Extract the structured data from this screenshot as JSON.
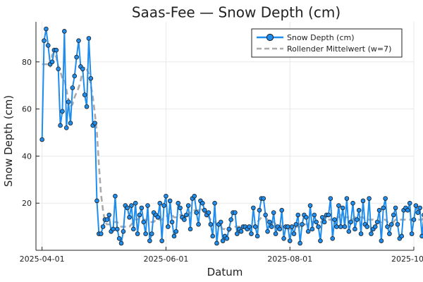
{
  "chart_data": {
    "type": "line",
    "title": "Saas-Fee — Snow Depth (cm)",
    "xlabel": "Datum",
    "ylabel": "Snow Depth (cm)",
    "x_type": "date",
    "x_start": "2025-04-01",
    "x_end": "2025-09-30",
    "xlim": [
      "2025-03-29",
      "2025-10-01"
    ],
    "ylim": [
      0,
      97
    ],
    "x_ticks": [
      "2025-04-01",
      "2025-06-01",
      "2025-08-01",
      "2025-10-01"
    ],
    "y_ticks": [
      20,
      40,
      60,
      80
    ],
    "grid": true,
    "legend_position": "top-right",
    "colors": {
      "series": "#1f8ded",
      "marker_edge": "#1a1a1a",
      "rolling": "#aaaaaa",
      "grid": "#e8e8e8"
    },
    "series": [
      {
        "name": "Snow Depth (cm)",
        "style": "line+markers",
        "values": [
          47,
          89,
          94,
          87,
          79,
          80,
          85,
          85,
          77,
          53,
          59,
          93,
          52,
          63,
          54,
          69,
          74,
          82,
          89,
          78,
          77,
          66,
          61,
          90,
          73,
          53,
          54,
          21,
          7,
          7,
          10,
          13,
          13,
          15,
          8,
          9,
          23,
          9,
          5,
          3,
          8,
          19,
          18,
          14,
          19,
          9,
          20,
          7,
          15,
          18,
          12,
          7,
          19,
          4,
          7,
          16,
          15,
          14,
          20,
          4,
          19,
          23,
          10,
          21,
          12,
          6,
          8,
          20,
          18,
          14,
          13,
          15,
          19,
          9,
          22,
          23,
          16,
          11,
          21,
          20,
          17,
          15,
          16,
          11,
          6,
          20,
          3,
          11,
          12,
          4,
          6,
          5,
          9,
          13,
          16,
          16,
          7,
          9,
          8,
          10,
          10,
          9,
          10,
          7,
          18,
          10,
          6,
          17,
          22,
          22,
          15,
          8,
          12,
          10,
          16,
          7,
          10,
          9,
          17,
          5,
          10,
          10,
          4,
          10,
          7,
          11,
          15,
          3,
          11,
          15,
          14,
          8,
          19,
          9,
          15,
          12,
          10,
          4,
          14,
          12,
          15,
          15,
          22,
          5,
          13,
          10,
          19,
          10,
          18,
          10,
          22,
          8,
          12,
          20,
          9,
          13,
          17,
          7,
          21,
          11,
          10,
          22,
          7,
          9,
          10,
          12,
          17,
          4,
          18,
          22,
          10,
          7,
          11,
          15,
          18,
          11,
          5,
          6,
          17,
          18,
          17,
          20,
          7,
          13,
          19,
          16,
          18,
          6,
          15,
          6,
          15,
          18,
          10,
          13,
          6,
          17,
          15,
          22,
          8,
          11
        ]
      },
      {
        "name": "Rollender Mittelwert (w=7)",
        "style": "dashed",
        "values": [
          79,
          79,
          79,
          79,
          78,
          83,
          84,
          82,
          78,
          76,
          73,
          73,
          68,
          64,
          61,
          62,
          65,
          67,
          69,
          72,
          76,
          78,
          77,
          75,
          70,
          65,
          58,
          50,
          36,
          24,
          17,
          12,
          11,
          11,
          11,
          12,
          12,
          12,
          11,
          10,
          10,
          10,
          10,
          10,
          11,
          12,
          13,
          13,
          14,
          14,
          13,
          13,
          13,
          12,
          12,
          12,
          13,
          13,
          13,
          13,
          14,
          14,
          15,
          16,
          15,
          14,
          14,
          14,
          15,
          15,
          14,
          14,
          15,
          16,
          16,
          17,
          17,
          17,
          18,
          17,
          16,
          15,
          14,
          13,
          12,
          12,
          11,
          10,
          10,
          9,
          9,
          8,
          8,
          9,
          10,
          10,
          10,
          10,
          10,
          10,
          9,
          9,
          10,
          10,
          10,
          11,
          12,
          13,
          14,
          14,
          14,
          13,
          12,
          12,
          12,
          11,
          11,
          11,
          10,
          10,
          10,
          9,
          9,
          9,
          9,
          10,
          10,
          10,
          10,
          11,
          11,
          11,
          12,
          12,
          12,
          12,
          12,
          12,
          12,
          13,
          13,
          13,
          13,
          13,
          14,
          14,
          14,
          15,
          14,
          14,
          14,
          14,
          14,
          13,
          14,
          14,
          14,
          14,
          14,
          13,
          13,
          13,
          13,
          13,
          12,
          12,
          12,
          12,
          13,
          13,
          12,
          12,
          12,
          12,
          13,
          13,
          13,
          13,
          13,
          13,
          13,
          13,
          13,
          13,
          13,
          13,
          13,
          13,
          14,
          14,
          14,
          14,
          14,
          14,
          14,
          14,
          14,
          14,
          14,
          14
        ]
      }
    ]
  }
}
